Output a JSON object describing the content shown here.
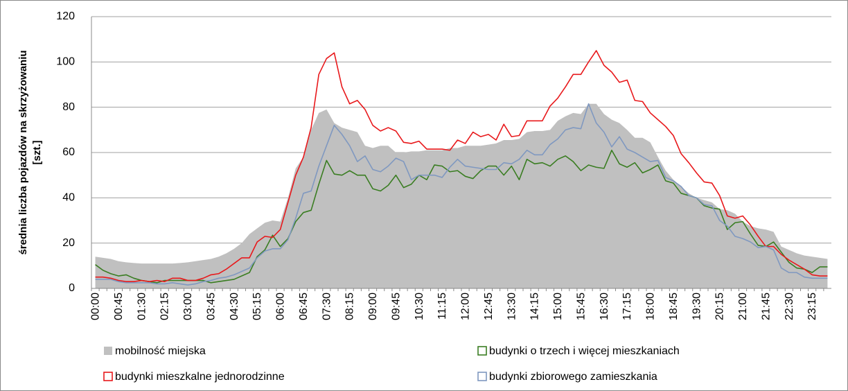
{
  "chart_data": {
    "type": "line",
    "y_label": [
      "średnia liczba pojazdów na skrzyżowaniu",
      "[szt.]"
    ],
    "categories": [
      "00:00",
      null,
      null,
      "00:45",
      null,
      null,
      "01:30",
      null,
      null,
      "02:15",
      null,
      null,
      "03:00",
      null,
      null,
      "03:45",
      null,
      null,
      "04:30",
      null,
      null,
      "05:15",
      null,
      null,
      "06:00",
      null,
      null,
      "06:45",
      null,
      null,
      "07:30",
      null,
      null,
      "08:15",
      null,
      null,
      "09:00",
      null,
      null,
      "09:45",
      null,
      null,
      "10:30",
      null,
      null,
      "11:15",
      null,
      null,
      "12:00",
      null,
      null,
      "12:45",
      null,
      null,
      "13:30",
      null,
      null,
      "14:15",
      null,
      null,
      "15:00",
      null,
      null,
      "15:45",
      null,
      null,
      "16:30",
      null,
      null,
      "17:15",
      null,
      null,
      "18:00",
      null,
      null,
      "18:45",
      null,
      null,
      "19:30",
      null,
      null,
      "20:15",
      null,
      null,
      "21:00",
      null,
      null,
      "21:45",
      null,
      null,
      "22:30",
      null,
      null,
      "23:15",
      null,
      null
    ],
    "series": [
      {
        "name": "mobilność miejska",
        "color": "#c0c0c0",
        "style": "area",
        "values": [
          14,
          13.5,
          13,
          12,
          11.5,
          11.2,
          11,
          11,
          11,
          11,
          11,
          11.2,
          11.5,
          12,
          12.5,
          13,
          14,
          15.5,
          17.5,
          20,
          24,
          26.5,
          29,
          30,
          29.5,
          40,
          53,
          58,
          70,
          77.5,
          79,
          73,
          71,
          70,
          69,
          63,
          62,
          63,
          63,
          60,
          60,
          60.5,
          60.5,
          61,
          61,
          61,
          62,
          62,
          63,
          63,
          63,
          63.5,
          64,
          65.5,
          65.5,
          66,
          69,
          69.5,
          69.5,
          70,
          74,
          76,
          77.5,
          77,
          81.5,
          81.5,
          77,
          74.5,
          73,
          70,
          66.5,
          66.5,
          64.5,
          58,
          52,
          48,
          45,
          42,
          40,
          39,
          38,
          35,
          34.5,
          33,
          29.5,
          27.5,
          26.5,
          26,
          25,
          18.5,
          17,
          15.5,
          14.5,
          14,
          13.5,
          13
        ]
      },
      {
        "name": "budynki o trzech i więcej mieszkaniach",
        "color": "#3a7d22",
        "style": "line",
        "values": [
          10.5,
          8,
          6.5,
          5.5,
          6,
          4.5,
          3.5,
          3,
          2.5,
          3.5,
          3.5,
          3.5,
          3.5,
          3.5,
          3.5,
          2.5,
          3,
          3.5,
          4,
          5.5,
          7,
          14,
          17,
          23.5,
          18.5,
          22,
          29.5,
          33.5,
          34.5,
          46,
          56.5,
          50.5,
          50,
          52,
          50,
          50,
          44,
          43,
          45.5,
          50,
          44.5,
          46,
          50,
          48,
          54.5,
          54,
          51.5,
          52,
          49.5,
          48.5,
          52,
          54,
          54,
          50,
          54,
          48,
          57,
          55,
          55.5,
          54,
          57,
          58.5,
          56,
          52,
          54.5,
          53.5,
          53,
          61,
          55,
          53.5,
          55.5,
          51,
          52.5,
          54.5,
          47.5,
          46.5,
          42,
          41,
          40,
          36.5,
          35.5,
          35,
          26,
          29,
          29.5,
          24,
          19,
          18.5,
          20.5,
          16,
          11.5,
          9,
          8.5,
          7,
          9.5,
          9.5
        ]
      },
      {
        "name": "budynki mieszkalne jednorodzinne",
        "color": "#e8181b",
        "style": "line",
        "values": [
          5,
          5,
          4.5,
          3.5,
          3,
          3,
          3.5,
          3,
          3.5,
          3,
          4.5,
          4.5,
          3.5,
          3.5,
          4.5,
          6,
          6.5,
          8.5,
          11,
          13.5,
          13.5,
          20.5,
          23,
          22.5,
          26,
          38,
          50,
          58,
          71,
          94.5,
          101.5,
          104,
          89,
          81.5,
          83,
          79,
          72,
          69.5,
          71,
          69.5,
          64.5,
          64,
          65,
          61.5,
          61.5,
          61.5,
          61,
          65.5,
          64,
          69,
          67,
          68,
          65.5,
          72.5,
          67,
          67.5,
          74,
          74,
          74,
          80.5,
          84,
          89,
          94.5,
          94.5,
          100,
          105,
          98.5,
          95.5,
          91,
          92,
          83,
          82.5,
          77.5,
          74.5,
          71.5,
          67.5,
          59.5,
          55.5,
          51,
          47,
          46.5,
          41,
          32,
          31,
          32,
          28,
          23,
          18.5,
          18.5,
          15,
          12.5,
          10.5,
          8.5,
          6,
          5.5,
          5.5
        ]
      },
      {
        "name": "budynki zbiorowego zamieszkania",
        "color": "#7f98c0",
        "style": "line",
        "values": [
          4,
          4,
          4,
          3,
          2.5,
          2.5,
          2.5,
          2.5,
          2,
          2,
          2.5,
          2,
          1.5,
          2,
          3,
          3.5,
          4.5,
          5,
          6,
          7.5,
          9,
          13.5,
          16.5,
          17.5,
          17.5,
          21.5,
          31,
          42,
          43,
          54,
          63,
          72,
          68,
          63,
          56,
          58.5,
          52.5,
          51.5,
          54,
          57.5,
          56,
          48,
          50,
          50,
          50,
          49,
          53.5,
          57,
          54,
          53.5,
          53,
          52.5,
          52.5,
          55.5,
          55,
          57,
          61,
          59,
          59,
          63.5,
          66,
          70,
          71,
          70.5,
          81.5,
          73,
          69,
          62.5,
          67,
          61.5,
          60,
          58,
          56,
          56.5,
          49,
          47.5,
          45,
          41,
          40,
          37,
          36.5,
          30,
          27.5,
          23,
          22,
          20.5,
          18,
          18.5,
          17,
          9,
          7,
          7,
          5,
          4.5,
          4.5,
          4.5
        ]
      }
    ],
    "ylim": [
      0,
      120
    ],
    "yticks": [
      0,
      20,
      40,
      60,
      80,
      100,
      120
    ],
    "grid": true,
    "legend": "bottom"
  }
}
